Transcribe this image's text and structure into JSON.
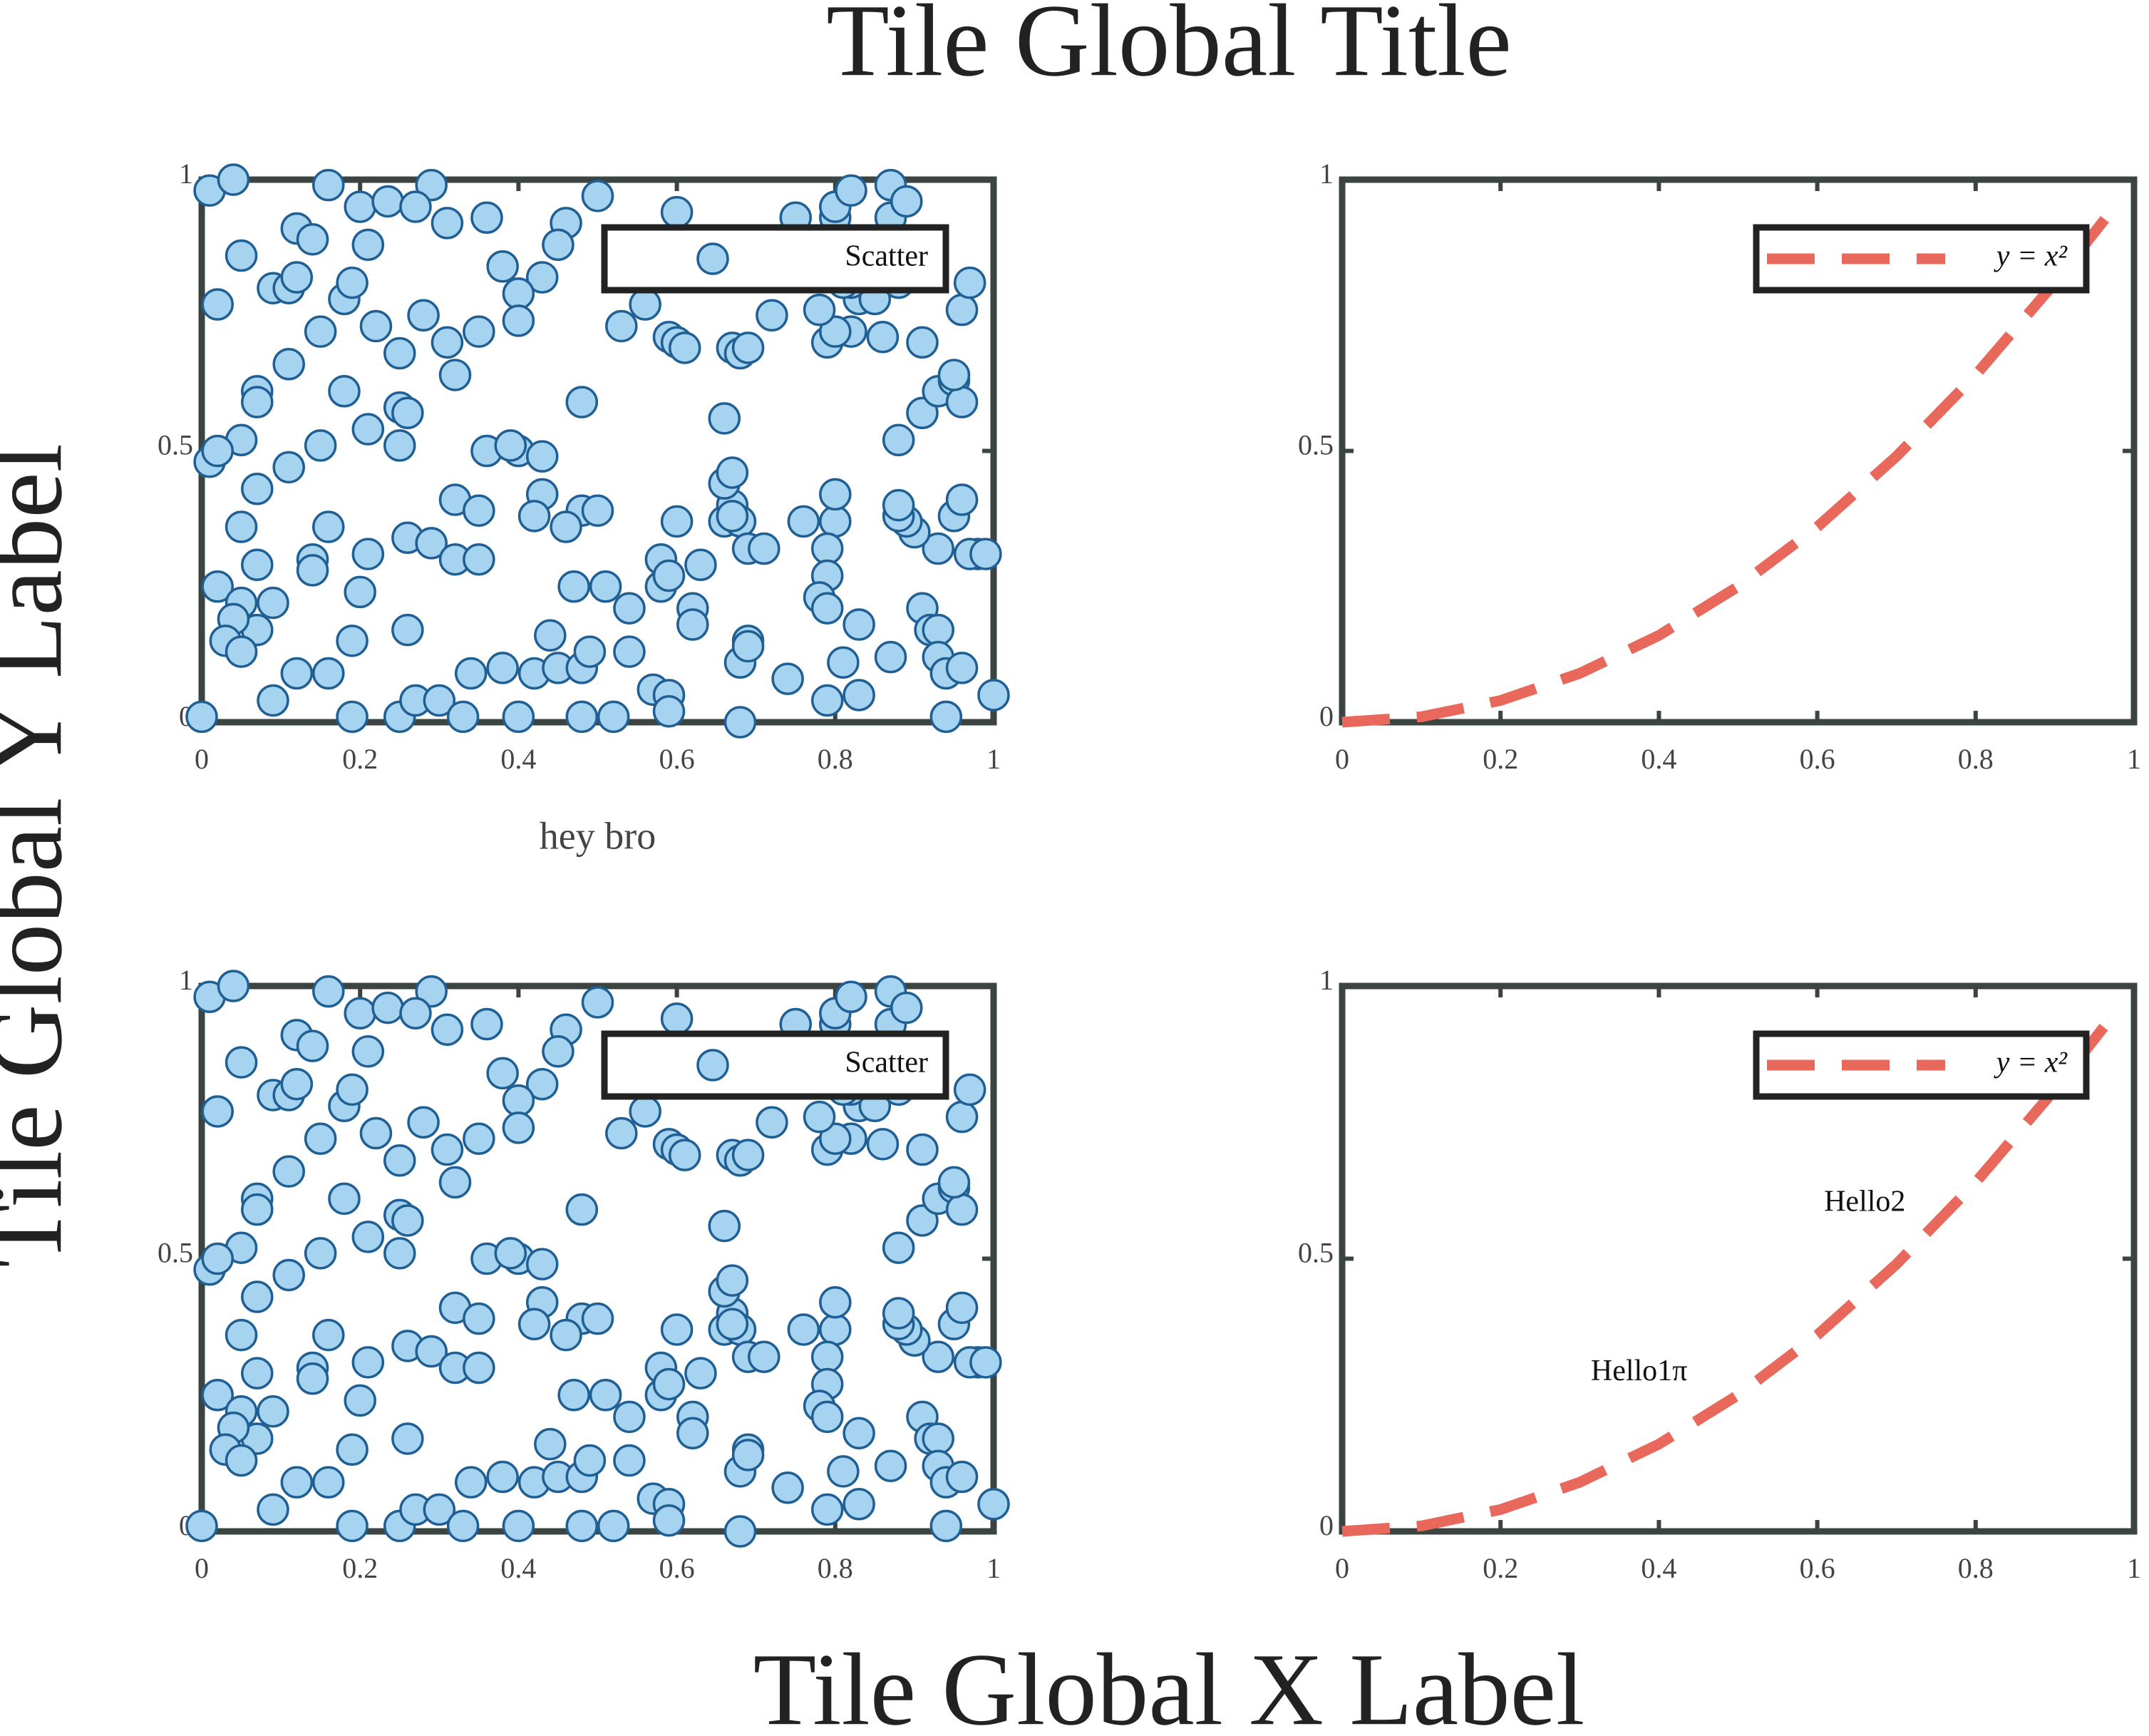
{
  "title": "Tile Global Title",
  "x_label": "Tile Global X Label",
  "y_label": "Tile Global Y Label",
  "chart_data": [
    {
      "type": "scatter",
      "x_label": "hey bro",
      "legend": "upper right",
      "x": [
        0.01,
        0.04,
        0.16,
        0.29,
        0.2,
        0.235,
        0.27,
        0.31,
        0.36,
        0.12,
        0.14,
        0.46,
        0.5,
        0.05,
        0.21,
        0.45,
        0.38,
        0.43,
        0.4,
        0.09,
        0.11,
        0.12,
        0.18,
        0.19,
        0.02,
        0.22,
        0.28,
        0.4,
        0.35,
        0.15,
        0.25,
        0.31,
        0.32,
        0.11,
        0.07,
        0.07,
        0.18,
        0.48,
        0.25,
        0.26,
        0.21,
        0.25,
        0.05,
        0.01,
        0.02,
        0.15,
        0.36,
        0.4,
        0.39,
        0.43,
        0.11,
        0.07,
        0.32,
        0.35,
        0.43,
        0.42,
        0.48,
        0.5,
        0.46,
        0.05,
        0.16,
        0.26,
        0.29,
        0.21,
        0.32,
        0.35,
        0.14,
        0.14,
        0.07,
        0.02,
        0.05,
        0.09,
        0.07,
        0.04,
        0.03,
        0.05,
        0.2,
        0.26,
        0.19,
        0.12,
        0.16,
        0.09,
        0.19,
        0.25,
        0,
        0.27,
        0.3,
        0.33,
        0.34,
        0.38,
        0.4,
        0.42,
        0.44,
        0.45,
        0.48,
        0.49,
        0.47,
        0.51,
        0.48,
        0.52,
        0.54,
        0.54,
        0.57,
        0.59,
        0.59,
        0.58,
        0.58,
        0.59,
        0.62,
        0.62,
        0.6,
        0.63,
        0.66,
        0.67,
        0.66,
        0.67,
        0.68,
        0.67,
        0.69,
        0.71,
        0.76,
        0.8,
        0.79,
        0.79,
        0.8,
        0.78,
        0.79,
        0.83,
        0.81,
        0.83,
        0.79,
        0.74,
        0.68,
        0.68,
        0.69,
        0.69,
        0.87,
        0.91,
        0.92,
        0.93,
        0.93,
        0.94,
        0.96,
        0.94,
        1,
        0.98,
        0.97,
        0.99,
        0.93,
        0.9,
        0.89,
        0.88,
        0.88,
        0.95,
        0.96,
        0.88,
        0.91,
        0.93,
        0.95,
        0.96,
        0.95,
        0.96,
        0.97,
        0.91,
        0.86,
        0.82,
        0.79,
        0.8,
        0.78,
        0.83,
        0.85,
        0.82,
        0.81,
        0.88,
        0.75,
        0.8,
        0.8,
        0.82,
        0.87,
        0.87,
        0.89,
        0.6,
        0.53,
        0.56,
        0.59,
        0.6,
        0.61,
        0.67,
        0.68,
        0.69,
        0.72,
        0.66
      ],
      "series": [
        {
          "name": "Scatter",
          "color": "#a6d3f0",
          "edge_color": "#1f5f94",
          "values": [
            0.98,
            1,
            0.99,
            0.99,
            0.95,
            0.96,
            0.95,
            0.92,
            0.93,
            0.91,
            0.89,
            0.92,
            0.97,
            0.86,
            0.88,
            0.88,
            0.84,
            0.82,
            0.79,
            0.8,
            0.8,
            0.82,
            0.78,
            0.81,
            0.77,
            0.73,
            0.75,
            0.74,
            0.72,
            0.72,
            0.68,
            0.7,
            0.64,
            0.66,
            0.61,
            0.59,
            0.61,
            0.59,
            0.58,
            0.57,
            0.54,
            0.51,
            0.52,
            0.48,
            0.5,
            0.51,
            0.5,
            0.5,
            0.51,
            0.49,
            0.47,
            0.43,
            0.41,
            0.39,
            0.42,
            0.38,
            0.39,
            0.39,
            0.36,
            0.36,
            0.36,
            0.34,
            0.33,
            0.31,
            0.3,
            0.3,
            0.3,
            0.28,
            0.29,
            0.25,
            0.22,
            0.22,
            0.17,
            0.19,
            0.15,
            0.13,
            0.24,
            0.17,
            0.15,
            0.09,
            0.09,
            0.04,
            0.01,
            0.01,
            0.01,
            0.04,
            0.04,
            0.01,
            0.09,
            0.1,
            0.01,
            0.09,
            0.16,
            0.1,
            0.1,
            0.13,
            0.25,
            0.25,
            0.01,
            0.01,
            0.13,
            0.21,
            0.06,
            0.05,
            0.02,
            0.25,
            0.3,
            0.27,
            0.21,
            0.18,
            0.37,
            0.29,
            0.37,
            0.4,
            0.44,
            0.46,
            0.37,
            0.38,
            0.32,
            0.32,
            0.37,
            0.37,
            0.32,
            0.27,
            0.42,
            0.23,
            0.21,
            0.18,
            0.11,
            0.05,
            0.04,
            0.08,
            0,
            0.11,
            0.15,
            0.14,
            0.12,
            0.21,
            0.17,
            0.17,
            0.12,
            0.09,
            0.1,
            0.01,
            0.05,
            0.31,
            0.31,
            0.31,
            0.32,
            0.35,
            0.37,
            0.38,
            0.4,
            0.38,
            0.41,
            0.52,
            0.57,
            0.61,
            0.63,
            0.59,
            0.64,
            0.76,
            0.81,
            0.7,
            0.71,
            0.72,
            0.7,
            0.72,
            0.76,
            0.78,
            0.78,
            0.81,
            0.81,
            0.81,
            0.93,
            0.93,
            0.95,
            0.98,
            0.99,
            0.93,
            0.96,
            0.94,
            0.73,
            0.77,
            0.71,
            0.7,
            0.69,
            0.69,
            0.68,
            0.69,
            0.75,
            0.56
          ]
        }
      ],
      "xlim": [
        0,
        1
      ],
      "xticks": [
        0,
        0.2,
        0.4,
        0.6,
        0.8,
        1
      ],
      "ylim": [
        0,
        1
      ],
      "yticks": [
        0,
        0.5,
        1
      ]
    },
    {
      "type": "line",
      "legend": "upper right",
      "x": [
        0,
        0.1,
        0.2,
        0.3,
        0.4,
        0.5,
        0.6,
        0.7,
        0.8,
        0.9,
        0.97
      ],
      "series": [
        {
          "name": "y = x²",
          "color": "#e8685c",
          "values": [
            0,
            0.01,
            0.04,
            0.09,
            0.16,
            0.25,
            0.36,
            0.49,
            0.64,
            0.81,
            0.94
          ]
        }
      ],
      "xlim": [
        0,
        1
      ],
      "xticks": [
        0,
        0.2,
        0.4,
        0.6,
        0.8,
        1
      ],
      "ylim": [
        0,
        1
      ],
      "yticks": [
        0,
        0.5,
        1
      ]
    },
    {
      "type": "scatter",
      "legend": "upper right",
      "x": [
        0.01,
        0.04,
        0.16,
        0.29,
        0.2,
        0.235,
        0.27,
        0.31,
        0.36,
        0.12,
        0.14,
        0.46,
        0.5,
        0.05,
        0.21,
        0.45,
        0.38,
        0.43,
        0.4,
        0.09,
        0.11,
        0.12,
        0.18,
        0.19,
        0.02,
        0.22,
        0.28,
        0.4,
        0.35,
        0.15,
        0.25,
        0.31,
        0.32,
        0.11,
        0.07,
        0.07,
        0.18,
        0.48,
        0.25,
        0.26,
        0.21,
        0.25,
        0.05,
        0.01,
        0.02,
        0.15,
        0.36,
        0.4,
        0.39,
        0.43,
        0.11,
        0.07,
        0.32,
        0.35,
        0.43,
        0.42,
        0.48,
        0.5,
        0.46,
        0.05,
        0.16,
        0.26,
        0.29,
        0.21,
        0.32,
        0.35,
        0.14,
        0.14,
        0.07,
        0.02,
        0.05,
        0.09,
        0.07,
        0.04,
        0.03,
        0.05,
        0.2,
        0.26,
        0.19,
        0.12,
        0.16,
        0.09,
        0.19,
        0.25,
        0,
        0.27,
        0.3,
        0.33,
        0.34,
        0.38,
        0.4,
        0.42,
        0.44,
        0.45,
        0.48,
        0.49,
        0.47,
        0.51,
        0.48,
        0.52,
        0.54,
        0.54,
        0.57,
        0.59,
        0.59,
        0.58,
        0.58,
        0.59,
        0.62,
        0.62,
        0.6,
        0.63,
        0.66,
        0.67,
        0.66,
        0.67,
        0.68,
        0.67,
        0.69,
        0.71,
        0.76,
        0.8,
        0.79,
        0.79,
        0.8,
        0.78,
        0.79,
        0.83,
        0.81,
        0.83,
        0.79,
        0.74,
        0.68,
        0.68,
        0.69,
        0.69,
        0.87,
        0.91,
        0.92,
        0.93,
        0.93,
        0.94,
        0.96,
        0.94,
        1,
        0.98,
        0.97,
        0.99,
        0.93,
        0.9,
        0.89,
        0.88,
        0.88,
        0.95,
        0.96,
        0.88,
        0.91,
        0.93,
        0.95,
        0.96,
        0.95,
        0.96,
        0.97,
        0.91,
        0.86,
        0.82,
        0.79,
        0.8,
        0.78,
        0.83,
        0.85,
        0.82,
        0.81,
        0.88,
        0.75,
        0.8,
        0.8,
        0.82,
        0.87,
        0.87,
        0.89,
        0.6,
        0.53,
        0.56,
        0.59,
        0.6,
        0.61,
        0.67,
        0.68,
        0.69,
        0.72,
        0.66
      ],
      "series": [
        {
          "name": "Scatter",
          "color": "#a6d3f0",
          "edge_color": "#1f5f94",
          "values": [
            0.98,
            1,
            0.99,
            0.99,
            0.95,
            0.96,
            0.95,
            0.92,
            0.93,
            0.91,
            0.89,
            0.92,
            0.97,
            0.86,
            0.88,
            0.88,
            0.84,
            0.82,
            0.79,
            0.8,
            0.8,
            0.82,
            0.78,
            0.81,
            0.77,
            0.73,
            0.75,
            0.74,
            0.72,
            0.72,
            0.68,
            0.7,
            0.64,
            0.66,
            0.61,
            0.59,
            0.61,
            0.59,
            0.58,
            0.57,
            0.54,
            0.51,
            0.52,
            0.48,
            0.5,
            0.51,
            0.5,
            0.5,
            0.51,
            0.49,
            0.47,
            0.43,
            0.41,
            0.39,
            0.42,
            0.38,
            0.39,
            0.39,
            0.36,
            0.36,
            0.36,
            0.34,
            0.33,
            0.31,
            0.3,
            0.3,
            0.3,
            0.28,
            0.29,
            0.25,
            0.22,
            0.22,
            0.17,
            0.19,
            0.15,
            0.13,
            0.24,
            0.17,
            0.15,
            0.09,
            0.09,
            0.04,
            0.01,
            0.01,
            0.01,
            0.04,
            0.04,
            0.01,
            0.09,
            0.1,
            0.01,
            0.09,
            0.16,
            0.1,
            0.1,
            0.13,
            0.25,
            0.25,
            0.01,
            0.01,
            0.13,
            0.21,
            0.06,
            0.05,
            0.02,
            0.25,
            0.3,
            0.27,
            0.21,
            0.18,
            0.37,
            0.29,
            0.37,
            0.4,
            0.44,
            0.46,
            0.37,
            0.38,
            0.32,
            0.32,
            0.37,
            0.37,
            0.32,
            0.27,
            0.42,
            0.23,
            0.21,
            0.18,
            0.11,
            0.05,
            0.04,
            0.08,
            0,
            0.11,
            0.15,
            0.14,
            0.12,
            0.21,
            0.17,
            0.17,
            0.12,
            0.09,
            0.1,
            0.01,
            0.05,
            0.31,
            0.31,
            0.31,
            0.32,
            0.35,
            0.37,
            0.38,
            0.4,
            0.38,
            0.41,
            0.52,
            0.57,
            0.61,
            0.63,
            0.59,
            0.64,
            0.76,
            0.81,
            0.7,
            0.71,
            0.72,
            0.7,
            0.72,
            0.76,
            0.78,
            0.78,
            0.81,
            0.81,
            0.81,
            0.93,
            0.93,
            0.95,
            0.98,
            0.99,
            0.93,
            0.96,
            0.94,
            0.73,
            0.77,
            0.71,
            0.7,
            0.69,
            0.69,
            0.68,
            0.69,
            0.75,
            0.56
          ]
        }
      ],
      "xlim": [
        0,
        1
      ],
      "xticks": [
        0,
        0.2,
        0.4,
        0.6,
        0.8,
        1
      ],
      "ylim": [
        0,
        1
      ],
      "yticks": [
        0,
        0.5,
        1
      ]
    },
    {
      "type": "line",
      "legend": "upper right",
      "x": [
        0,
        0.1,
        0.2,
        0.3,
        0.4,
        0.5,
        0.6,
        0.7,
        0.8,
        0.9,
        0.97
      ],
      "series": [
        {
          "name": "y = x²",
          "color": "#e8685c",
          "values": [
            0,
            0.01,
            0.04,
            0.09,
            0.16,
            0.25,
            0.36,
            0.49,
            0.64,
            0.81,
            0.94
          ]
        }
      ],
      "annotations": [
        {
          "text": "Hello1π",
          "x": 0.375,
          "y": 0.29
        },
        {
          "text": "Hello2",
          "x": 0.66,
          "y": 0.6
        }
      ],
      "xlim": [
        0,
        1
      ],
      "xticks": [
        0,
        0.2,
        0.4,
        0.6,
        0.8,
        1
      ],
      "ylim": [
        0,
        1
      ],
      "yticks": [
        0,
        0.5,
        1
      ]
    }
  ]
}
